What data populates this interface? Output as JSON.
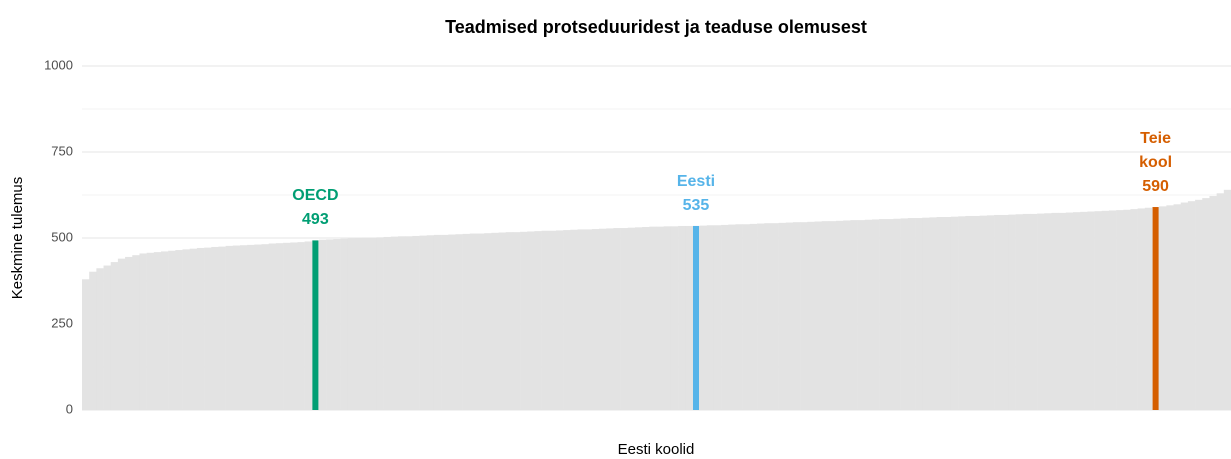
{
  "chart_data": {
    "type": "bar",
    "title": "Teadmised protseduuridest ja teaduse olemusest",
    "xlabel": "Eesti koolid",
    "ylabel": "Keskmine tulemus",
    "color": "#e3e3e3",
    "ylim": [
      0,
      1000
    ],
    "yticks": [
      0,
      250,
      500,
      750,
      1000
    ],
    "minor_yticks": [
      125,
      375,
      625,
      875
    ],
    "grid": true,
    "values": [
      380,
      402,
      412,
      420,
      430,
      440,
      445,
      450,
      455,
      457,
      459,
      461,
      463,
      465,
      467,
      469,
      471,
      472,
      474,
      475,
      477,
      478,
      479,
      480,
      481,
      482,
      484,
      485,
      486,
      487,
      488,
      490,
      493,
      495,
      496,
      497,
      498,
      499,
      500,
      501,
      501,
      502,
      503,
      504,
      505,
      505,
      506,
      507,
      508,
      509,
      509,
      510,
      511,
      512,
      513,
      513,
      514,
      515,
      516,
      517,
      517,
      518,
      519,
      520,
      521,
      521,
      522,
      523,
      524,
      525,
      525,
      526,
      527,
      528,
      529,
      529,
      530,
      531,
      532,
      533,
      533,
      534,
      534,
      535,
      535,
      535,
      536,
      537,
      537,
      538,
      539,
      540,
      540,
      541,
      542,
      543,
      543,
      544,
      545,
      546,
      546,
      547,
      548,
      549,
      549,
      550,
      551,
      552,
      552,
      553,
      554,
      555,
      555,
      556,
      557,
      558,
      558,
      559,
      560,
      561,
      561,
      562,
      563,
      564,
      564,
      565,
      566,
      567,
      567,
      568,
      569,
      570,
      570,
      571,
      572,
      573,
      573,
      574,
      575,
      576,
      577,
      578,
      579,
      580,
      581,
      582,
      584,
      586,
      588,
      590,
      592,
      595,
      598,
      603,
      607,
      611,
      616,
      622,
      630,
      640
    ],
    "highlights": [
      {
        "name": "OECD",
        "value": 493,
        "index": 32,
        "color": "#009e73"
      },
      {
        "name": "Eesti",
        "value": 535,
        "index": 85,
        "color": "#56b4e9"
      },
      {
        "name": "Teie kool",
        "value": 590,
        "index": 149,
        "color": "#d55e00"
      }
    ]
  }
}
